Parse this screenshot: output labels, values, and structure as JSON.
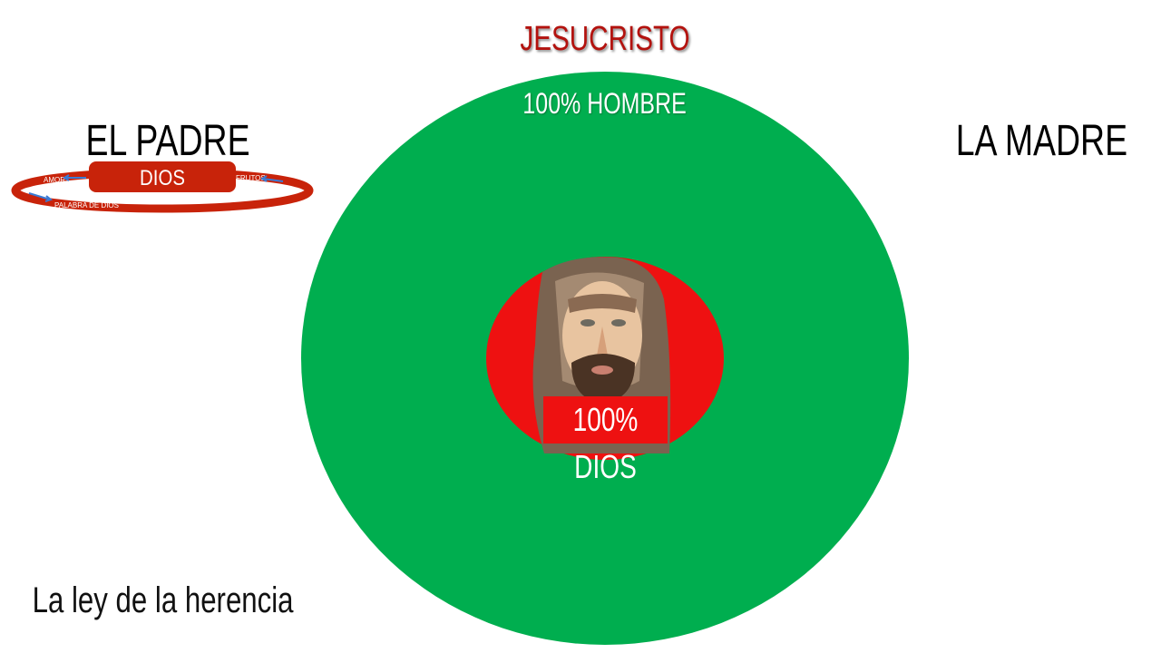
{
  "title": "JESUCRISTO",
  "left_label": "EL PADRE",
  "right_label": "LA MADRE",
  "footer": "La ley de la herencia",
  "outer_circle": {
    "label": "100% HOMBRE",
    "color": "#00ae4f"
  },
  "inner_circle": {
    "label": "100% DIOS",
    "color": "#ee1111",
    "image": "jesus-portrait"
  },
  "ring": {
    "center_label": "DIOS",
    "labels": [
      "AMOR",
      "FRUTOS",
      "PALABRA DE DIOS"
    ],
    "color": "#c8230a",
    "arrow_color": "#3a7bd5"
  }
}
